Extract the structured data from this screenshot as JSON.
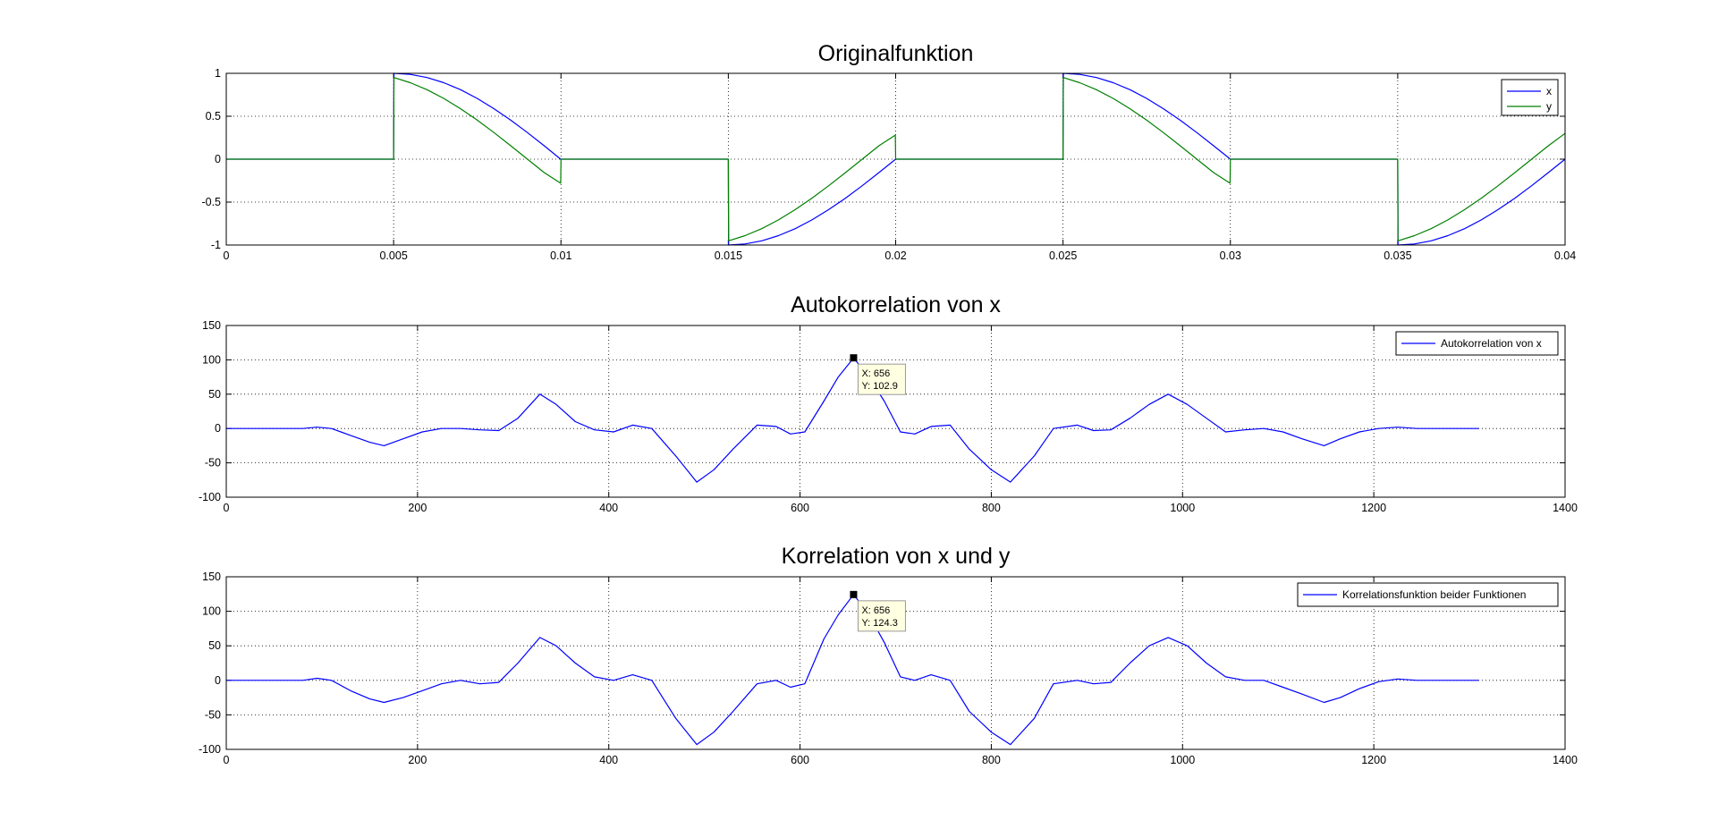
{
  "chart_data": [
    {
      "type": "line",
      "title": "Originalfunktion",
      "xlim": [
        0,
        0.04
      ],
      "ylim": [
        -1,
        1
      ],
      "xticks": [
        "0",
        "0.005",
        "0.01",
        "0.015",
        "0.02",
        "0.025",
        "0.03",
        "0.035",
        "0.04"
      ],
      "yticks": [
        "-1",
        "-0.5",
        "0",
        "0.5",
        "1"
      ],
      "grid": true,
      "legend_position": "top-right",
      "series": [
        {
          "name": "x",
          "color": "#0000ff",
          "x": [
            0,
            0.005,
            0.00501,
            0.0055,
            0.006,
            0.0065,
            0.007,
            0.0075,
            0.008,
            0.0085,
            0.009,
            0.0095,
            0.00999,
            0.01,
            0.015,
            0.01501,
            0.0155,
            0.016,
            0.0165,
            0.017,
            0.0175,
            0.018,
            0.0185,
            0.019,
            0.0195,
            0.02,
            0.025,
            0.02501,
            0.0255,
            0.026,
            0.0265,
            0.027,
            0.0275,
            0.028,
            0.0285,
            0.029,
            0.0295,
            0.03,
            0.035,
            0.03501,
            0.0355,
            0.036,
            0.0365,
            0.037,
            0.0375,
            0.038,
            0.0385,
            0.039,
            0.0395,
            0.04
          ],
          "y": [
            0,
            0,
            1,
            0.9877,
            0.9511,
            0.891,
            0.809,
            0.7071,
            0.5878,
            0.454,
            0.309,
            0.1564,
            0,
            0,
            0,
            -1,
            -0.9877,
            -0.9511,
            -0.891,
            -0.809,
            -0.7071,
            -0.5878,
            -0.454,
            -0.309,
            -0.1564,
            0,
            0,
            1,
            0.9877,
            0.9511,
            0.891,
            0.809,
            0.7071,
            0.5878,
            0.454,
            0.309,
            0.1564,
            0,
            0,
            -1,
            -0.9877,
            -0.9511,
            -0.891,
            -0.809,
            -0.7071,
            -0.5878,
            -0.454,
            -0.309,
            -0.1564,
            0
          ]
        },
        {
          "name": "y",
          "color": "#008000",
          "x": [
            0,
            0.005,
            0.00501,
            0.0055,
            0.006,
            0.0065,
            0.007,
            0.0075,
            0.008,
            0.0085,
            0.009,
            0.0095,
            0.00999,
            0.01,
            0.015,
            0.01501,
            0.0155,
            0.016,
            0.0165,
            0.017,
            0.0175,
            0.018,
            0.0185,
            0.019,
            0.0195,
            0.01999,
            0.02,
            0.025,
            0.02501,
            0.0255,
            0.026,
            0.0265,
            0.027,
            0.0275,
            0.028,
            0.0285,
            0.029,
            0.0295,
            0.02999,
            0.03,
            0.035,
            0.03501,
            0.0355,
            0.036,
            0.0365,
            0.037,
            0.0375,
            0.038,
            0.0385,
            0.039,
            0.0395,
            0.04
          ],
          "y": [
            0,
            0,
            0.9511,
            0.891,
            0.809,
            0.7071,
            0.5878,
            0.454,
            0.309,
            0.1564,
            0,
            -0.1564,
            -0.28,
            0,
            0,
            -0.9511,
            -0.891,
            -0.809,
            -0.7071,
            -0.5878,
            -0.454,
            -0.309,
            -0.1564,
            0,
            0.1564,
            0.28,
            0,
            0,
            0.9511,
            0.891,
            0.809,
            0.7071,
            0.5878,
            0.454,
            0.309,
            0.1564,
            0,
            -0.1564,
            -0.28,
            0,
            0,
            -0.9511,
            -0.891,
            -0.809,
            -0.7071,
            -0.5878,
            -0.454,
            -0.309,
            -0.1564,
            0,
            0.1564,
            0.3
          ]
        }
      ]
    },
    {
      "type": "line",
      "title": "Autokorrelation von x",
      "xlim": [
        0,
        1400
      ],
      "ylim": [
        -100,
        150
      ],
      "xticks": [
        "0",
        "200",
        "400",
        "600",
        "800",
        "1000",
        "1200",
        "1400"
      ],
      "yticks": [
        "-100",
        "-50",
        "0",
        "50",
        "100",
        "150"
      ],
      "grid": true,
      "legend_position": "top-right",
      "series": [
        {
          "name": "Autokorrelation von x",
          "color": "#0000ff",
          "x": [
            0,
            80,
            95,
            110,
            130,
            150,
            165,
            185,
            205,
            225,
            245,
            265,
            285,
            305,
            328,
            345,
            365,
            385,
            405,
            425,
            445,
            470,
            492,
            510,
            530,
            555,
            575,
            590,
            605,
            625,
            640,
            656,
            672,
            688,
            705,
            720,
            737,
            757,
            777,
            800,
            820,
            845,
            865,
            890,
            907,
            925,
            945,
            965,
            985,
            1005,
            1025,
            1045,
            1065,
            1085,
            1105,
            1125,
            1148,
            1165,
            1185,
            1205,
            1225,
            1245,
            1310
          ],
          "y": [
            0,
            0,
            2,
            0,
            -10,
            -20,
            -25,
            -15,
            -5,
            0,
            0,
            -2,
            -3,
            15,
            50,
            35,
            10,
            -2,
            -5,
            5,
            0,
            -40,
            -78,
            -60,
            -30,
            5,
            3,
            -8,
            -5,
            40,
            75,
            102.9,
            75,
            40,
            -5,
            -8,
            3,
            5,
            -30,
            -60,
            -78,
            -40,
            0,
            5,
            -3,
            -2,
            15,
            35,
            50,
            35,
            15,
            -5,
            -2,
            0,
            -5,
            -15,
            -25,
            -15,
            -5,
            0,
            2,
            0,
            0
          ]
        }
      ],
      "datatip": {
        "x_label": "X: 656",
        "y_label": "Y: 102.9",
        "x": 656,
        "y": 102.9
      }
    },
    {
      "type": "line",
      "title": "Korrelation von x und y",
      "xlim": [
        0,
        1400
      ],
      "ylim": [
        -100,
        150
      ],
      "xticks": [
        "0",
        "200",
        "400",
        "600",
        "800",
        "1000",
        "1200",
        "1400"
      ],
      "yticks": [
        "-100",
        "-50",
        "0",
        "50",
        "100",
        "150"
      ],
      "grid": true,
      "legend_position": "top-right",
      "series": [
        {
          "name": "Korrelationsfunktion beider Funktionen",
          "color": "#0000ff",
          "x": [
            0,
            80,
            95,
            110,
            130,
            150,
            165,
            185,
            205,
            225,
            245,
            265,
            285,
            305,
            328,
            345,
            365,
            385,
            405,
            425,
            445,
            470,
            492,
            510,
            530,
            555,
            575,
            590,
            605,
            625,
            640,
            656,
            672,
            688,
            705,
            720,
            737,
            757,
            777,
            800,
            820,
            845,
            865,
            890,
            907,
            925,
            945,
            965,
            985,
            1005,
            1025,
            1045,
            1065,
            1085,
            1105,
            1125,
            1148,
            1165,
            1185,
            1205,
            1225,
            1245,
            1310
          ],
          "y": [
            0,
            0,
            3,
            0,
            -15,
            -27,
            -32,
            -25,
            -15,
            -5,
            0,
            -5,
            -3,
            25,
            62,
            50,
            25,
            5,
            0,
            8,
            0,
            -55,
            -93,
            -75,
            -45,
            -5,
            0,
            -10,
            -5,
            60,
            95,
            124.3,
            95,
            55,
            5,
            0,
            8,
            0,
            -45,
            -75,
            -93,
            -55,
            -5,
            0,
            -5,
            -3,
            25,
            50,
            62,
            50,
            25,
            5,
            0,
            0,
            -10,
            -20,
            -32,
            -25,
            -12,
            -2,
            2,
            0,
            0
          ]
        }
      ],
      "datatip": {
        "x_label": "X: 656",
        "y_label": "Y: 124.3",
        "x": 656,
        "y": 124.3
      }
    }
  ]
}
